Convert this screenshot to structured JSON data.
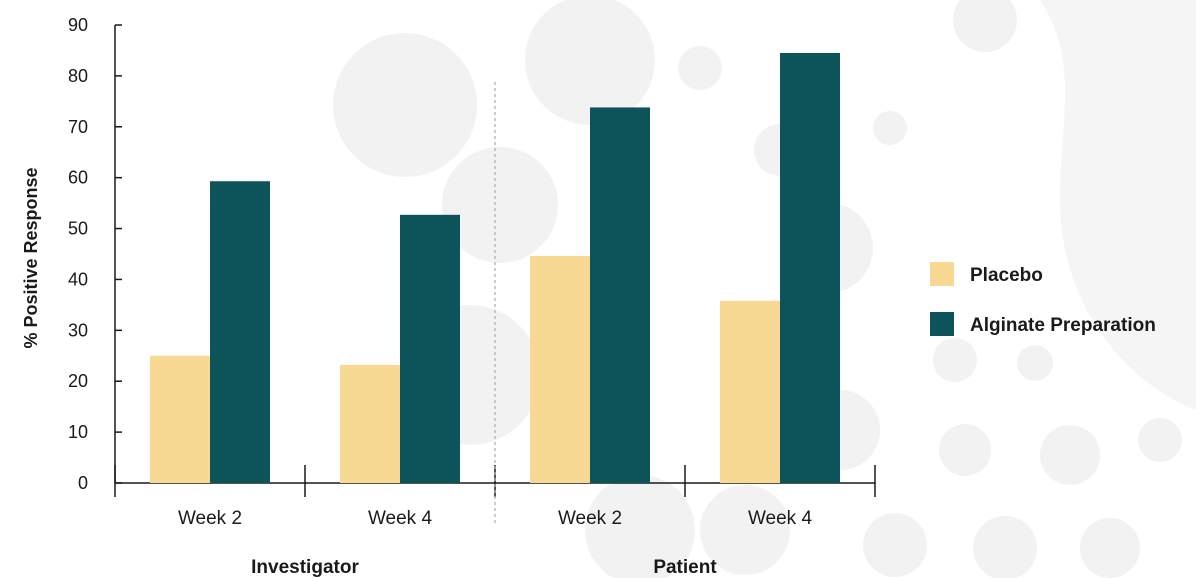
{
  "chart_data": {
    "type": "bar",
    "ylabel": "% Positive Response",
    "ylim": [
      0,
      90
    ],
    "yticks": [
      0,
      10,
      20,
      30,
      40,
      50,
      60,
      70,
      80,
      90
    ],
    "groups": [
      {
        "label": "Investigator",
        "categories": [
          "Week 2",
          "Week 4"
        ]
      },
      {
        "label": "Patient",
        "categories": [
          "Week 2",
          "Week 4"
        ]
      }
    ],
    "categories": [
      "Week 2",
      "Week 4",
      "Week 2",
      "Week 4"
    ],
    "series": [
      {
        "name": "Placebo",
        "color": "#f7d994",
        "values": [
          25,
          23.2,
          44.6,
          35.8
        ]
      },
      {
        "name": "Alginate Preparation",
        "color": "#0c535a",
        "values": [
          59.3,
          52.7,
          73.8,
          84.5
        ]
      }
    ],
    "legend_position": "right",
    "grid": false
  }
}
